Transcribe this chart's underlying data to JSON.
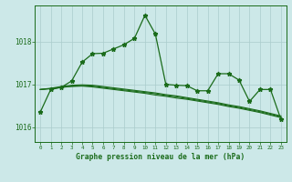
{
  "title": "Graphe pression niveau de la mer (hPa)",
  "background_color": "#cce8e8",
  "grid_color": "#aacccc",
  "line_color": "#1a6b1a",
  "xlim": [
    -0.5,
    23.5
  ],
  "ylim": [
    1015.65,
    1018.85
  ],
  "yticks": [
    1016,
    1017,
    1018
  ],
  "xtick_labels": [
    "0",
    "1",
    "2",
    "3",
    "4",
    "5",
    "6",
    "7",
    "8",
    "9",
    "10",
    "11",
    "12",
    "13",
    "14",
    "15",
    "16",
    "17",
    "18",
    "19",
    "20",
    "21",
    "22",
    "23"
  ],
  "series": [
    {
      "x": [
        0,
        1,
        2,
        3,
        4,
        5,
        6,
        7,
        8,
        9,
        10,
        11,
        12,
        13,
        14,
        15,
        16,
        17,
        18,
        19,
        20,
        21,
        22,
        23
      ],
      "y": [
        1016.35,
        1016.88,
        1016.93,
        1017.08,
        1017.52,
        1017.72,
        1017.73,
        1017.83,
        1017.93,
        1018.08,
        1018.62,
        1018.18,
        1017.0,
        1016.98,
        1016.97,
        1016.85,
        1016.85,
        1017.25,
        1017.25,
        1017.1,
        1016.6,
        1016.88,
        1016.88,
        1016.18
      ],
      "marker": true
    },
    {
      "x": [
        0,
        1,
        2,
        3,
        4,
        5,
        6,
        7,
        8,
        9,
        10,
        11,
        12,
        13,
        14,
        15,
        16,
        17,
        18,
        19,
        20,
        21,
        22,
        23
      ],
      "y": [
        1016.88,
        1016.9,
        1016.93,
        1016.95,
        1016.96,
        1016.94,
        1016.91,
        1016.88,
        1016.85,
        1016.82,
        1016.79,
        1016.75,
        1016.72,
        1016.68,
        1016.65,
        1016.61,
        1016.57,
        1016.53,
        1016.48,
        1016.44,
        1016.39,
        1016.34,
        1016.28,
        1016.22
      ],
      "marker": false
    },
    {
      "x": [
        0,
        1,
        2,
        3,
        4,
        5,
        6,
        7,
        8,
        9,
        10,
        11,
        12,
        13,
        14,
        15,
        16,
        17,
        18,
        19,
        20,
        21,
        22,
        23
      ],
      "y": [
        1016.88,
        1016.9,
        1016.93,
        1016.96,
        1016.97,
        1016.96,
        1016.93,
        1016.9,
        1016.87,
        1016.84,
        1016.81,
        1016.78,
        1016.74,
        1016.71,
        1016.67,
        1016.63,
        1016.59,
        1016.55,
        1016.5,
        1016.46,
        1016.41,
        1016.36,
        1016.3,
        1016.24
      ],
      "marker": false
    },
    {
      "x": [
        0,
        1,
        2,
        3,
        4,
        5,
        6,
        7,
        8,
        9,
        10,
        11,
        12,
        13,
        14,
        15,
        16,
        17,
        18,
        19,
        20,
        21,
        22,
        23
      ],
      "y": [
        1016.88,
        1016.91,
        1016.95,
        1016.98,
        1016.99,
        1016.98,
        1016.95,
        1016.92,
        1016.89,
        1016.86,
        1016.83,
        1016.8,
        1016.76,
        1016.73,
        1016.69,
        1016.65,
        1016.61,
        1016.57,
        1016.52,
        1016.48,
        1016.43,
        1016.38,
        1016.32,
        1016.26
      ],
      "marker": false
    }
  ]
}
